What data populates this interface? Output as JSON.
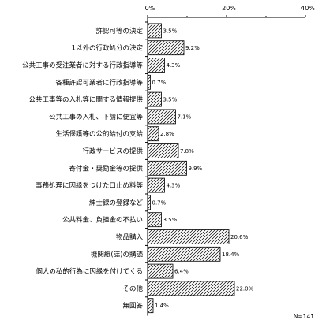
{
  "chart_data": {
    "type": "bar",
    "orientation": "horizontal",
    "categories": [
      "許認可等の決定",
      "1以外の行政処分の決定",
      "公共工事の受注業者に対する行政指導等",
      "各種許認可業者に行政指導等",
      "公共工事等の入札等に関する情報提供",
      "公共工事の入札、下請に便宜等",
      "生活保護等の公的給付の支給",
      "行政サービスの提供",
      "寄付金・奨励金等の提供",
      "事務処理に因縁をつけた口止め料等",
      "紳士録の登録など",
      "公共料金、負担金の不払い",
      "物品購入",
      "機関紙(誌)の購読",
      "個人の私的行為に因縁を付けてくる",
      "その他",
      "無回答"
    ],
    "values": [
      3.5,
      9.2,
      4.3,
      0.7,
      3.5,
      7.1,
      2.8,
      7.8,
      9.9,
      4.3,
      0.7,
      3.5,
      20.6,
      18.4,
      6.4,
      22.0,
      1.4
    ],
    "value_labels": [
      "3.5%",
      "9.2%",
      "4.3%",
      "0.7%",
      "3.5%",
      "7.1%",
      "2.8%",
      "7.8%",
      "9.9%",
      "4.3%",
      "0.7%",
      "3.5%",
      "20.6%",
      "18.4%",
      "6.4%",
      "22.0%",
      "1.4%"
    ],
    "xlim": [
      0,
      40
    ],
    "x_ticks": [
      "0%",
      "20%",
      "40%"
    ],
    "x_tick_values": [
      0,
      20,
      40
    ],
    "axis_position": "top",
    "bar_fill": "diagonal-hatch",
    "note": "N=141",
    "grid": false
  }
}
